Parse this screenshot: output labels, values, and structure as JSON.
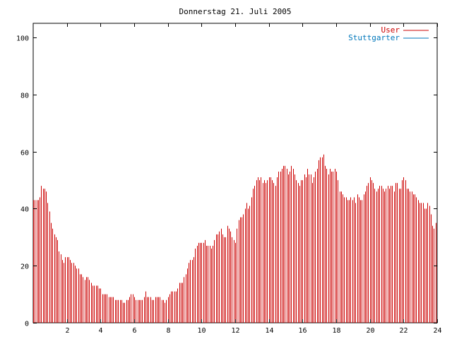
{
  "chart_data": {
    "type": "bar",
    "title": "Donnerstag 21. Juli 2005",
    "xlabel": "",
    "ylabel": "",
    "xlim": [
      0,
      24
    ],
    "ylim": [
      0,
      105
    ],
    "x_ticks": [
      2,
      4,
      6,
      8,
      10,
      12,
      14,
      16,
      18,
      20,
      22,
      24
    ],
    "y_ticks": [
      0,
      20,
      40,
      60,
      80,
      100
    ],
    "grid": false,
    "legend_position": "top-right",
    "series": [
      {
        "name": "User",
        "color": "#cc0000",
        "interval_hours": 0.0833,
        "values": [
          43,
          43,
          43,
          43,
          44,
          48,
          47,
          47,
          46,
          42,
          39,
          35,
          33,
          31,
          30,
          29,
          25,
          24,
          22,
          21,
          23,
          23,
          23,
          22,
          21,
          21,
          20,
          19,
          19,
          17,
          17,
          16,
          15,
          16,
          16,
          15,
          14,
          13,
          13,
          13,
          13,
          12,
          12,
          10,
          10,
          10,
          10,
          9,
          9,
          9,
          9,
          8,
          8,
          8,
          8,
          8,
          7,
          7,
          8,
          8,
          9,
          10,
          10,
          9,
          8,
          8,
          8,
          8,
          8,
          9,
          11,
          9,
          9,
          9,
          8,
          8,
          9,
          9,
          9,
          9,
          8,
          8,
          7,
          8,
          9,
          10,
          11,
          11,
          11,
          11,
          12,
          14,
          14,
          14,
          16,
          17,
          19,
          21,
          22,
          22,
          23,
          26,
          27,
          28,
          28,
          28,
          28,
          29,
          27,
          27,
          27,
          26,
          27,
          29,
          31,
          31,
          32,
          33,
          31,
          30,
          30,
          34,
          33,
          32,
          30,
          29,
          28,
          33,
          36,
          37,
          37,
          38,
          40,
          42,
          40,
          41,
          44,
          47,
          48,
          50,
          51,
          50,
          51,
          49,
          50,
          49,
          50,
          51,
          51,
          50,
          49,
          48,
          51,
          53,
          53,
          54,
          55,
          55,
          54,
          52,
          53,
          55,
          54,
          52,
          50,
          49,
          48,
          50,
          50,
          52,
          51,
          54,
          52,
          52,
          49,
          51,
          53,
          54,
          57,
          58,
          58,
          59,
          55,
          54,
          52,
          54,
          53,
          53,
          54,
          53,
          50,
          46,
          46,
          45,
          44,
          44,
          43,
          43,
          44,
          43,
          44,
          42,
          45,
          44,
          43,
          43,
          45,
          46,
          48,
          49,
          51,
          50,
          49,
          47,
          46,
          47,
          48,
          48,
          47,
          46,
          47,
          48,
          47,
          48,
          48,
          46,
          49,
          49,
          47,
          47,
          50,
          51,
          50,
          47,
          47,
          46,
          46,
          45,
          45,
          44,
          43,
          42,
          42,
          42,
          40,
          40,
          42,
          41,
          38,
          34,
          33,
          35
        ]
      },
      {
        "name": "Stuttgarter",
        "color": "#0077bb",
        "values": []
      }
    ]
  }
}
